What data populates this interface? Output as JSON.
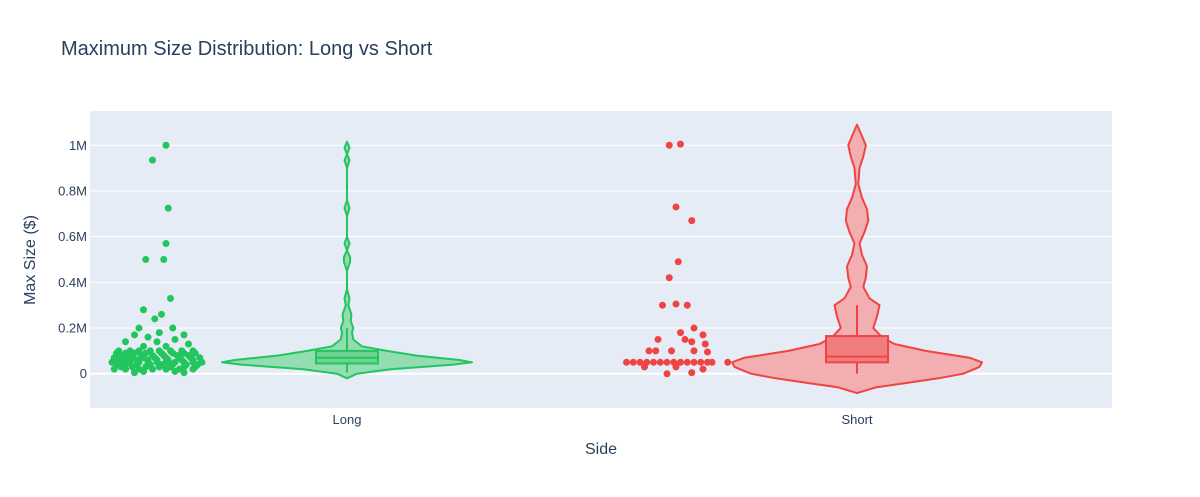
{
  "chart_data": {
    "type": "violin",
    "title": "Maximum Size Distribution: Long vs Short",
    "xlabel": "Side",
    "ylabel": "Max Size ($)",
    "categories": [
      "Long",
      "Short"
    ],
    "ylim": [
      -150000,
      1150000
    ],
    "yticks": [
      {
        "value": 0,
        "label": "0"
      },
      {
        "value": 200000,
        "label": "0.2M"
      },
      {
        "value": 400000,
        "label": "0.4M"
      },
      {
        "value": 600000,
        "label": "0.6M"
      },
      {
        "value": 800000,
        "label": "0.8M"
      },
      {
        "value": 1000000,
        "label": "1M"
      }
    ],
    "grid": true,
    "colors": {
      "Long": {
        "line": "#22c55e",
        "fill": "#86d9a4",
        "box": "#6fd293",
        "point": "#22c55e"
      },
      "Short": {
        "line": "#ef4444",
        "fill": "#f4a3a3",
        "box": "#f07d7d",
        "point": "#ef4444"
      },
      "plot_bg": "#e5ecf6",
      "grid": "#ffffff"
    },
    "series": [
      {
        "category": "Long",
        "box": {
          "q1": 45000,
          "median": 70000,
          "q3": 100000,
          "min": 5000,
          "max": 200000
        },
        "density": [
          [
            -20000,
            0.0
          ],
          [
            0,
            0.08
          ],
          [
            20000,
            0.35
          ],
          [
            40000,
            0.85
          ],
          [
            50000,
            1.0
          ],
          [
            60000,
            0.9
          ],
          [
            80000,
            0.55
          ],
          [
            100000,
            0.32
          ],
          [
            120000,
            0.12
          ],
          [
            150000,
            0.05
          ],
          [
            180000,
            0.04
          ],
          [
            200000,
            0.05
          ],
          [
            230000,
            0.03
          ],
          [
            260000,
            0.035
          ],
          [
            300000,
            0.01
          ],
          [
            330000,
            0.02
          ],
          [
            370000,
            0.0
          ],
          [
            450000,
            0.0
          ],
          [
            490000,
            0.025
          ],
          [
            510000,
            0.025
          ],
          [
            540000,
            0.0
          ],
          [
            570000,
            0.02
          ],
          [
            600000,
            0.0
          ],
          [
            690000,
            0.0
          ],
          [
            725000,
            0.02
          ],
          [
            760000,
            0.0
          ],
          [
            900000,
            0.0
          ],
          [
            935000,
            0.02
          ],
          [
            960000,
            0.0
          ],
          [
            990000,
            0.02
          ],
          [
            1015000,
            0.0
          ]
        ],
        "points": [
          [
            0.2,
            1000000
          ],
          [
            -0.1,
            935000
          ],
          [
            0.25,
            725000
          ],
          [
            0.2,
            570000
          ],
          [
            -0.25,
            500000
          ],
          [
            0.15,
            500000
          ],
          [
            0.3,
            330000
          ],
          [
            -0.3,
            280000
          ],
          [
            0.1,
            260000
          ],
          [
            -0.05,
            240000
          ],
          [
            -0.4,
            200000
          ],
          [
            0.35,
            200000
          ],
          [
            0.05,
            180000
          ],
          [
            -0.5,
            170000
          ],
          [
            0.6,
            170000
          ],
          [
            -0.2,
            160000
          ],
          [
            0.4,
            150000
          ],
          [
            -0.7,
            140000
          ],
          [
            0.0,
            140000
          ],
          [
            0.7,
            130000
          ],
          [
            -0.3,
            120000
          ],
          [
            0.2,
            120000
          ],
          [
            -0.85,
            100000
          ],
          [
            -0.6,
            100000
          ],
          [
            -0.4,
            100000
          ],
          [
            -0.15,
            100000
          ],
          [
            0.05,
            100000
          ],
          [
            0.3,
            100000
          ],
          [
            0.55,
            100000
          ],
          [
            0.8,
            100000
          ],
          [
            -0.9,
            90000
          ],
          [
            -0.7,
            90000
          ],
          [
            -0.5,
            90000
          ],
          [
            -0.25,
            90000
          ],
          [
            0.1,
            90000
          ],
          [
            0.35,
            90000
          ],
          [
            0.6,
            90000
          ],
          [
            0.85,
            90000
          ],
          [
            -0.8,
            80000
          ],
          [
            -0.6,
            80000
          ],
          [
            -0.35,
            80000
          ],
          [
            -0.1,
            80000
          ],
          [
            0.15,
            80000
          ],
          [
            0.45,
            80000
          ],
          [
            0.7,
            80000
          ],
          [
            -0.95,
            70000
          ],
          [
            -0.75,
            70000
          ],
          [
            -0.55,
            70000
          ],
          [
            -0.3,
            70000
          ],
          [
            -0.05,
            70000
          ],
          [
            0.2,
            70000
          ],
          [
            0.5,
            70000
          ],
          [
            0.75,
            70000
          ],
          [
            0.95,
            70000
          ],
          [
            -0.85,
            60000
          ],
          [
            -0.65,
            60000
          ],
          [
            -0.45,
            60000
          ],
          [
            -0.2,
            60000
          ],
          [
            0.0,
            60000
          ],
          [
            0.25,
            60000
          ],
          [
            0.55,
            60000
          ],
          [
            0.8,
            60000
          ],
          [
            -1.0,
            50000
          ],
          [
            -0.8,
            50000
          ],
          [
            -0.6,
            50000
          ],
          [
            -0.4,
            50000
          ],
          [
            -0.2,
            50000
          ],
          [
            0.0,
            50000
          ],
          [
            0.2,
            50000
          ],
          [
            0.4,
            50000
          ],
          [
            0.6,
            50000
          ],
          [
            0.8,
            50000
          ],
          [
            1.0,
            50000
          ],
          [
            -0.9,
            40000
          ],
          [
            -0.7,
            40000
          ],
          [
            -0.45,
            40000
          ],
          [
            -0.15,
            40000
          ],
          [
            0.1,
            40000
          ],
          [
            0.35,
            40000
          ],
          [
            0.65,
            40000
          ],
          [
            0.9,
            40000
          ],
          [
            -0.8,
            30000
          ],
          [
            -0.55,
            30000
          ],
          [
            -0.25,
            30000
          ],
          [
            0.05,
            30000
          ],
          [
            0.3,
            30000
          ],
          [
            0.6,
            30000
          ],
          [
            0.85,
            30000
          ],
          [
            -0.95,
            20000
          ],
          [
            -0.7,
            20000
          ],
          [
            -0.4,
            20000
          ],
          [
            -0.1,
            20000
          ],
          [
            0.2,
            20000
          ],
          [
            0.5,
            20000
          ],
          [
            0.8,
            20000
          ],
          [
            -0.3,
            10000
          ],
          [
            0.4,
            10000
          ],
          [
            0.6,
            5000
          ],
          [
            -0.5,
            5000
          ]
        ]
      },
      {
        "category": "Short",
        "box": {
          "q1": 50000,
          "median": 75000,
          "q3": 165000,
          "min": 0,
          "max": 300000
        },
        "density": [
          [
            -85000,
            0.0
          ],
          [
            -60000,
            0.15
          ],
          [
            -40000,
            0.4
          ],
          [
            -20000,
            0.65
          ],
          [
            0,
            0.85
          ],
          [
            30000,
            0.98
          ],
          [
            50000,
            1.0
          ],
          [
            70000,
            0.9
          ],
          [
            100000,
            0.55
          ],
          [
            130000,
            0.3
          ],
          [
            160000,
            0.2
          ],
          [
            200000,
            0.13
          ],
          [
            250000,
            0.16
          ],
          [
            300000,
            0.18
          ],
          [
            330000,
            0.1
          ],
          [
            380000,
            0.05
          ],
          [
            420000,
            0.07
          ],
          [
            470000,
            0.08
          ],
          [
            520000,
            0.04
          ],
          [
            570000,
            0.02
          ],
          [
            620000,
            0.06
          ],
          [
            670000,
            0.09
          ],
          [
            720000,
            0.08
          ],
          [
            770000,
            0.04
          ],
          [
            830000,
            0.01
          ],
          [
            900000,
            0.02
          ],
          [
            950000,
            0.05
          ],
          [
            1000000,
            0.07
          ],
          [
            1040000,
            0.04
          ],
          [
            1090000,
            0.0
          ]
        ],
        "points": [
          [
            0.05,
            1000000
          ],
          [
            0.3,
            1005000
          ],
          [
            0.2,
            730000
          ],
          [
            0.55,
            670000
          ],
          [
            0.25,
            490000
          ],
          [
            0.05,
            420000
          ],
          [
            -0.1,
            300000
          ],
          [
            0.2,
            305000
          ],
          [
            0.45,
            300000
          ],
          [
            0.6,
            200000
          ],
          [
            0.3,
            180000
          ],
          [
            0.8,
            170000
          ],
          [
            -0.2,
            150000
          ],
          [
            0.4,
            150000
          ],
          [
            0.55,
            140000
          ],
          [
            0.85,
            130000
          ],
          [
            -0.4,
            100000
          ],
          [
            -0.25,
            100000
          ],
          [
            0.1,
            100000
          ],
          [
            0.6,
            100000
          ],
          [
            0.9,
            95000
          ],
          [
            -0.9,
            50000
          ],
          [
            -0.75,
            50000
          ],
          [
            -0.6,
            50000
          ],
          [
            -0.45,
            50000
          ],
          [
            -0.3,
            50000
          ],
          [
            -0.15,
            50000
          ],
          [
            0.0,
            50000
          ],
          [
            0.15,
            50000
          ],
          [
            0.3,
            50000
          ],
          [
            0.45,
            50000
          ],
          [
            0.6,
            50000
          ],
          [
            0.75,
            50000
          ],
          [
            0.9,
            50000
          ],
          [
            1.0,
            50000
          ],
          [
            1.35,
            50000
          ],
          [
            -0.5,
            30000
          ],
          [
            0.2,
            30000
          ],
          [
            0.8,
            20000
          ],
          [
            0.0,
            0
          ],
          [
            0.55,
            5000
          ]
        ]
      }
    ]
  }
}
